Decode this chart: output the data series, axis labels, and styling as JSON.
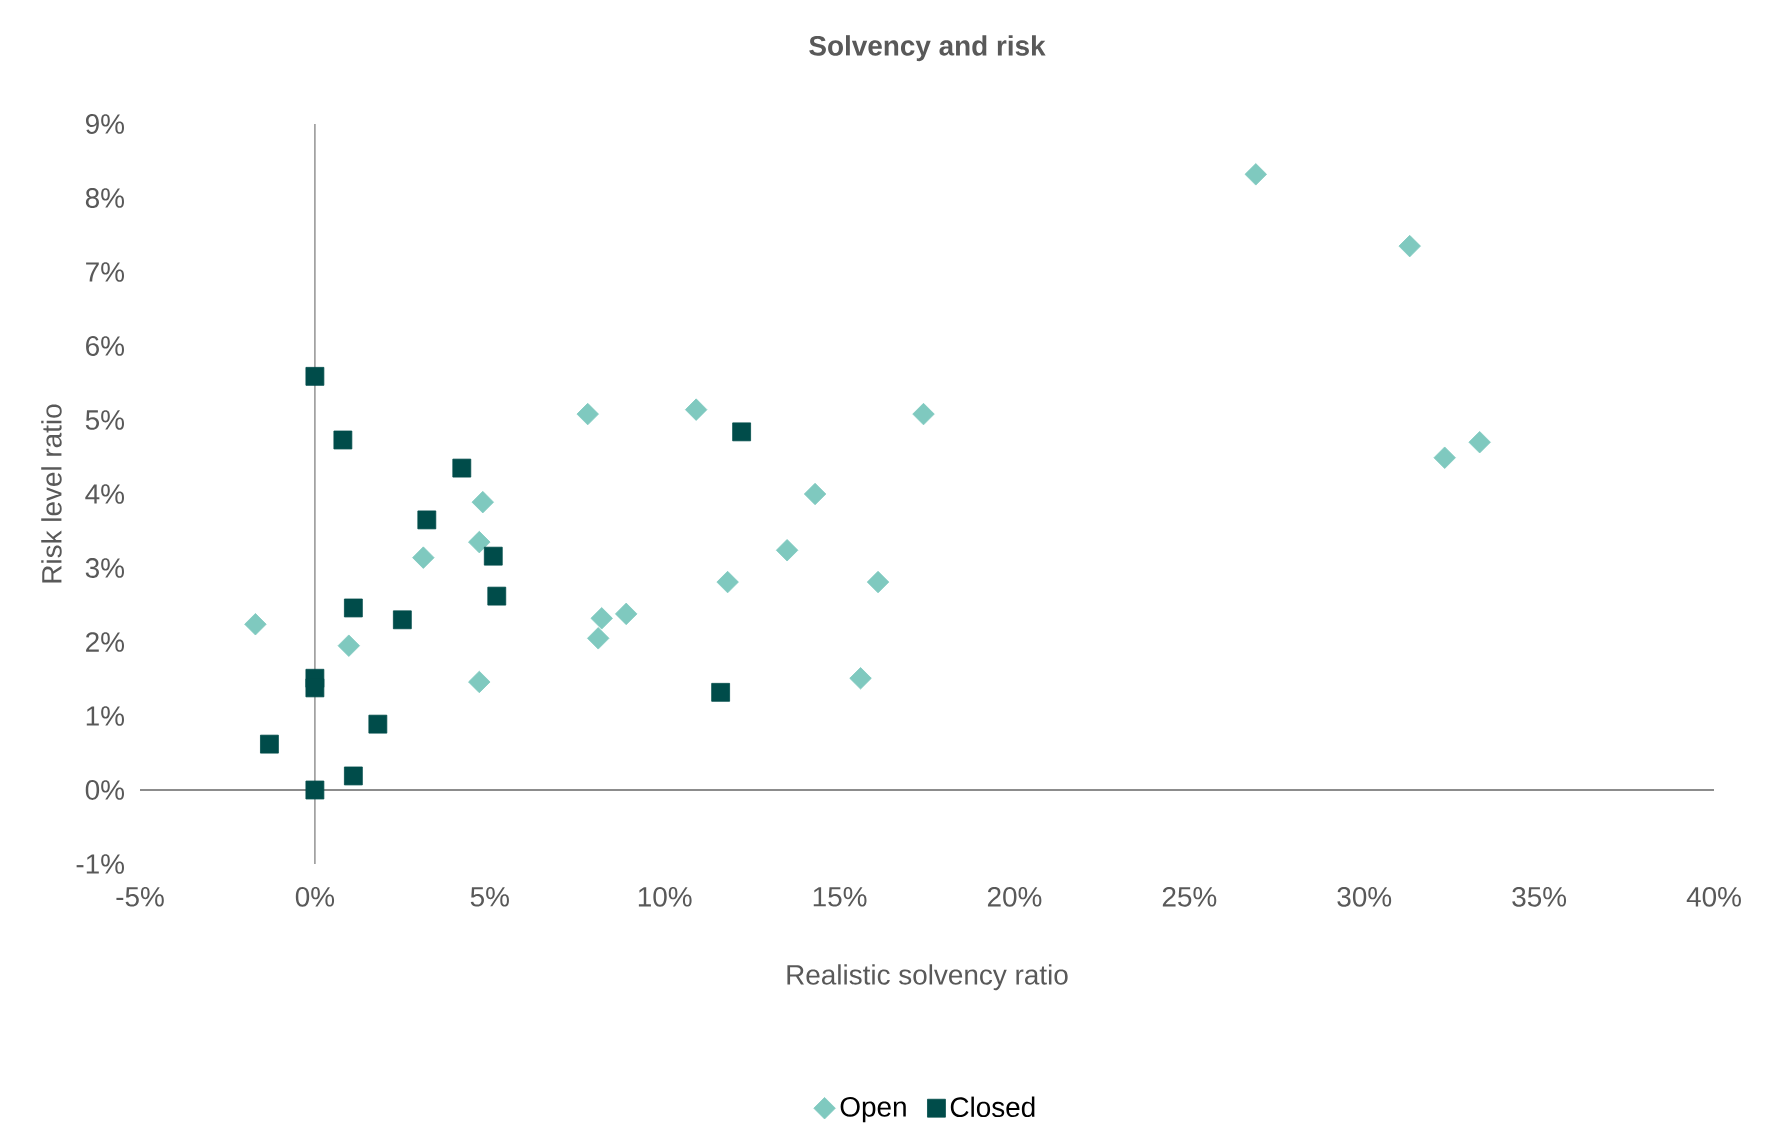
{
  "chart_data": {
    "type": "scatter",
    "title": "Solvency and risk",
    "xlabel": "Realistic solvency ratio",
    "ylabel": "Risk level ratio",
    "xlim": [
      -5,
      40
    ],
    "ylim": [
      -1,
      9
    ],
    "xticks": [
      {
        "value": -5,
        "label": "-5%"
      },
      {
        "value": 0,
        "label": "0%"
      },
      {
        "value": 5,
        "label": "5%"
      },
      {
        "value": 10,
        "label": "10%"
      },
      {
        "value": 15,
        "label": "15%"
      },
      {
        "value": 20,
        "label": "20%"
      },
      {
        "value": 25,
        "label": "25%"
      },
      {
        "value": 30,
        "label": "30%"
      },
      {
        "value": 35,
        "label": "35%"
      },
      {
        "value": 40,
        "label": "40%"
      }
    ],
    "yticks": [
      {
        "value": -1,
        "label": "-1%"
      },
      {
        "value": 0,
        "label": "0%"
      },
      {
        "value": 1,
        "label": "1%"
      },
      {
        "value": 2,
        "label": "2%"
      },
      {
        "value": 3,
        "label": "3%"
      },
      {
        "value": 4,
        "label": "4%"
      },
      {
        "value": 5,
        "label": "5%"
      },
      {
        "value": 6,
        "label": "6%"
      },
      {
        "value": 7,
        "label": "7%"
      },
      {
        "value": 8,
        "label": "8%"
      },
      {
        "value": 9,
        "label": "9%"
      }
    ],
    "grid": false,
    "legend": "bottom",
    "series": [
      {
        "name": "Open",
        "color": "#7fc9bf",
        "marker": "diamond",
        "x": [
          -1.7,
          0.97,
          3.1,
          4.7,
          4.8,
          4.7,
          7.8,
          8.2,
          8.1,
          8.9,
          10.9,
          11.8,
          13.5,
          14.3,
          16.1,
          15.6,
          17.4,
          26.9,
          31.3,
          32.3,
          33.3
        ],
        "values": [
          2.24,
          1.95,
          3.14,
          3.35,
          3.89,
          1.46,
          5.08,
          2.32,
          2.05,
          2.38,
          5.14,
          2.81,
          3.24,
          4.0,
          2.81,
          1.51,
          5.08,
          8.32,
          7.35,
          4.49,
          4.7
        ]
      },
      {
        "name": "Closed",
        "color": "#004c4a",
        "marker": "square",
        "x": [
          0,
          0.8,
          4.2,
          3.2,
          5.1,
          5.2,
          1.1,
          2.5,
          0,
          0,
          1.8,
          -1.3,
          1.1,
          0,
          11.6,
          12.2
        ],
        "values": [
          5.59,
          4.73,
          4.35,
          3.65,
          3.16,
          2.62,
          2.46,
          2.3,
          1.51,
          1.38,
          0.89,
          0.62,
          0.19,
          0,
          1.32,
          4.84
        ]
      }
    ]
  }
}
